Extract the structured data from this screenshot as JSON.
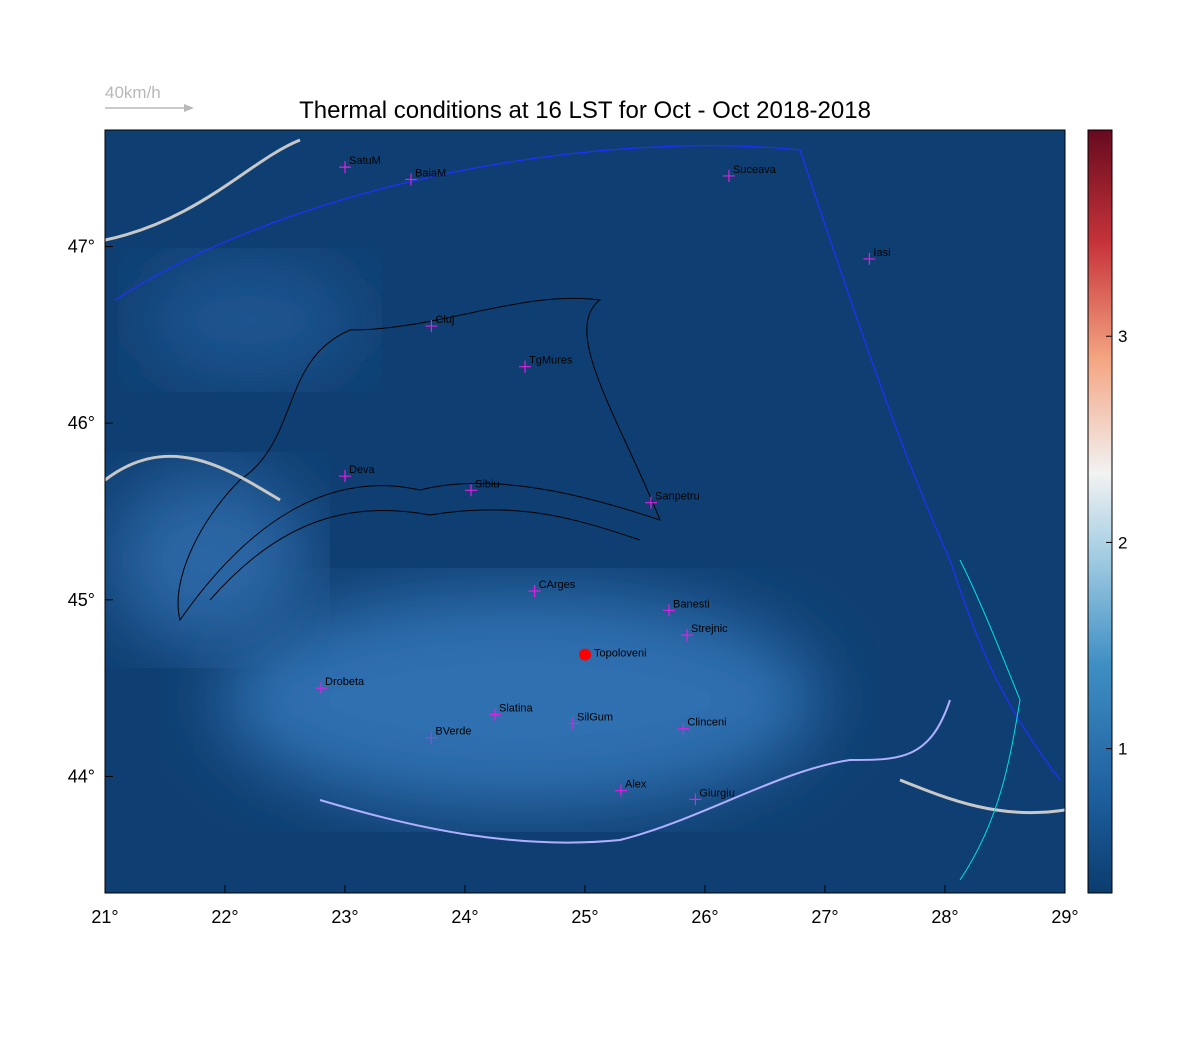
{
  "title": "Thermal conditions at 16 LST for Oct - Oct  2018-2018",
  "legend_label": "40km/h",
  "map": {
    "xlim": [
      21,
      29
    ],
    "ylim": [
      43.34,
      47.66
    ],
    "xticks": [
      {
        "value": 21,
        "label": "21°"
      },
      {
        "value": 22,
        "label": "22°"
      },
      {
        "value": 23,
        "label": "23°"
      },
      {
        "value": 24,
        "label": "24°"
      },
      {
        "value": 25,
        "label": "25°"
      },
      {
        "value": 26,
        "label": "26°"
      },
      {
        "value": 27,
        "label": "27°"
      },
      {
        "value": 28,
        "label": "28°"
      },
      {
        "value": 29,
        "label": "29°"
      }
    ],
    "yticks": [
      {
        "value": 44,
        "label": "44°"
      },
      {
        "value": 45,
        "label": "45°"
      },
      {
        "value": 46,
        "label": "46°"
      },
      {
        "value": 47,
        "label": "47°"
      }
    ],
    "cities": [
      {
        "name": "SatuM",
        "lon": 23.0,
        "lat": 47.45
      },
      {
        "name": "BaiaM",
        "lon": 23.55,
        "lat": 47.38
      },
      {
        "name": "Suceava",
        "lon": 26.2,
        "lat": 47.4
      },
      {
        "name": "Iasi",
        "lon": 27.37,
        "lat": 46.93
      },
      {
        "name": "Cluj",
        "lon": 23.72,
        "lat": 46.55
      },
      {
        "name": "TgMures",
        "lon": 24.5,
        "lat": 46.32
      },
      {
        "name": "Deva",
        "lon": 23.0,
        "lat": 45.7
      },
      {
        "name": "Sibiu",
        "lon": 24.05,
        "lat": 45.62
      },
      {
        "name": "Sanpetru",
        "lon": 25.55,
        "lat": 45.55
      },
      {
        "name": "CArges",
        "lon": 24.58,
        "lat": 45.05
      },
      {
        "name": "Banesti",
        "lon": 25.7,
        "lat": 44.94
      },
      {
        "name": "Strejnic",
        "lon": 25.85,
        "lat": 44.8
      },
      {
        "name": "Drobeta",
        "lon": 22.8,
        "lat": 44.5
      },
      {
        "name": "Slatina",
        "lon": 24.25,
        "lat": 44.35
      },
      {
        "name": "SilGum",
        "lon": 24.9,
        "lat": 44.3
      },
      {
        "name": "BVerde",
        "lon": 23.72,
        "lat": 44.22
      },
      {
        "name": "Clinceni",
        "lon": 25.82,
        "lat": 44.27
      },
      {
        "name": "Alex",
        "lon": 25.3,
        "lat": 43.92
      },
      {
        "name": "Giurgiu",
        "lon": 25.92,
        "lat": 43.87
      }
    ],
    "highlight": {
      "name": "Topoloveni",
      "lon": 25.0,
      "lat": 44.69,
      "color": "#ff0000"
    }
  },
  "colorbar": {
    "lim": [
      0.3,
      4
    ],
    "ticks": [
      1,
      2,
      3
    ]
  }
}
